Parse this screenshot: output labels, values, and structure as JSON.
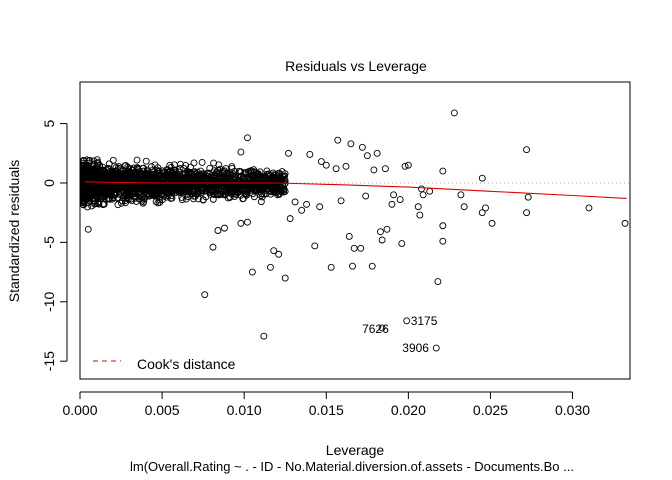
{
  "chart_data": {
    "type": "scatter",
    "title": "Residuals vs Leverage",
    "xlabel": "Leverage",
    "ylabel": "Standardized residuals",
    "caption": "lm(Overall.Rating ~ . - ID - No.Material.diversion.of.assets - Documents.Bo ...",
    "xlim": [
      0,
      0.0335
    ],
    "ylim": [
      -16.5,
      8.5
    ],
    "x_ticks": [
      0.0,
      0.005,
      0.01,
      0.015,
      0.02,
      0.025,
      0.03
    ],
    "x_tick_labels": [
      "0.000",
      "0.005",
      "0.010",
      "0.015",
      "0.020",
      "0.025",
      "0.030"
    ],
    "y_ticks": [
      5,
      0,
      -5,
      -10,
      -15
    ],
    "y_tick_labels": [
      "5",
      "0",
      "-5",
      "-10",
      "-15"
    ],
    "reference_lines": {
      "x": 0,
      "y": 0,
      "style": "dotted",
      "color": "#a0a0a0"
    },
    "smooth_line": {
      "color": "#e00000",
      "x": [
        0.0003,
        0.002,
        0.005,
        0.008,
        0.012,
        0.016,
        0.02,
        0.025,
        0.03,
        0.0333
      ],
      "y": [
        0.1,
        0.05,
        0.0,
        0.0,
        0.0,
        -0.15,
        -0.35,
        -0.7,
        -1.05,
        -1.3
      ]
    },
    "legend": {
      "position": "bottom-left",
      "label": "Cook's distance",
      "color": "#e00000",
      "style": "dashed"
    },
    "dense_cloud": {
      "x_range": [
        0.0002,
        0.0125
      ],
      "y_range": [
        -3.0,
        2.8
      ],
      "count": 2200,
      "seed": 7
    },
    "points": [
      [
        0.0228,
        5.9
      ],
      [
        0.0272,
        2.8
      ],
      [
        0.0245,
        0.4
      ],
      [
        0.0332,
        -3.4
      ],
      [
        0.031,
        -2.1
      ],
      [
        0.0273,
        -1.2
      ],
      [
        0.0272,
        -2.5
      ],
      [
        0.0251,
        -3.4
      ],
      [
        0.0247,
        -2.1
      ],
      [
        0.0245,
        -2.5
      ],
      [
        0.0234,
        -2.0
      ],
      [
        0.0221,
        -3.6
      ],
      [
        0.0221,
        -4.9
      ],
      [
        0.0218,
        -8.3
      ],
      [
        0.0213,
        -0.7
      ],
      [
        0.0209,
        -1.0
      ],
      [
        0.0207,
        -2.7
      ],
      [
        0.0206,
        -2.0
      ],
      [
        0.0198,
        1.4
      ],
      [
        0.0196,
        -5.1
      ],
      [
        0.0191,
        -1.0
      ],
      [
        0.0187,
        -3.9
      ],
      [
        0.0184,
        -4.8
      ],
      [
        0.0183,
        -4.1
      ],
      [
        0.0178,
        -7.0
      ],
      [
        0.0175,
        2.3
      ],
      [
        0.0171,
        -5.5
      ],
      [
        0.0167,
        -5.5
      ],
      [
        0.0166,
        -7.0
      ],
      [
        0.0164,
        -4.5
      ],
      [
        0.0157,
        3.6
      ],
      [
        0.0153,
        -7.1
      ],
      [
        0.0143,
        -5.3
      ],
      [
        0.0135,
        -2.3
      ],
      [
        0.0125,
        -8.0
      ],
      [
        0.0121,
        -6.0
      ],
      [
        0.0118,
        -5.7
      ],
      [
        0.0116,
        -7.1
      ],
      [
        0.0112,
        -12.9
      ],
      [
        0.0105,
        -7.5
      ],
      [
        0.0102,
        -3.3
      ],
      [
        0.0098,
        -3.4
      ],
      [
        0.0088,
        -3.8
      ],
      [
        0.0084,
        -4.0
      ],
      [
        0.0081,
        -5.4
      ],
      [
        0.0076,
        -9.4
      ],
      [
        0.0005,
        -3.9
      ],
      [
        0.0165,
        3.3
      ],
      [
        0.0172,
        3.0
      ],
      [
        0.0181,
        2.5
      ],
      [
        0.0186,
        1.2
      ],
      [
        0.0221,
        1.0
      ],
      [
        0.02,
        1.5
      ],
      [
        0.0232,
        -1.0
      ],
      [
        0.0195,
        -1.4
      ],
      [
        0.0102,
        3.8
      ],
      [
        0.0098,
        2.6
      ],
      [
        0.0127,
        2.5
      ],
      [
        0.014,
        2.4
      ],
      [
        0.0147,
        1.8
      ],
      [
        0.015,
        1.5
      ],
      [
        0.0156,
        1.2
      ],
      [
        0.0162,
        1.4
      ],
      [
        0.0179,
        1.1
      ],
      [
        0.0208,
        -0.5
      ],
      [
        0.019,
        -1.8
      ],
      [
        0.0174,
        -1.1
      ],
      [
        0.0159,
        -1.5
      ],
      [
        0.0146,
        -2.0
      ],
      [
        0.0138,
        -1.8
      ],
      [
        0.0131,
        -1.6
      ],
      [
        0.0128,
        -3.0
      ]
    ],
    "labeled_points": [
      {
        "id": "3175",
        "x": 0.0199,
        "y": -11.6
      },
      {
        "id": "7626",
        "x": 0.0184,
        "y": -12.2
      },
      {
        "id": "3906",
        "x": 0.0217,
        "y": -13.9
      }
    ]
  }
}
